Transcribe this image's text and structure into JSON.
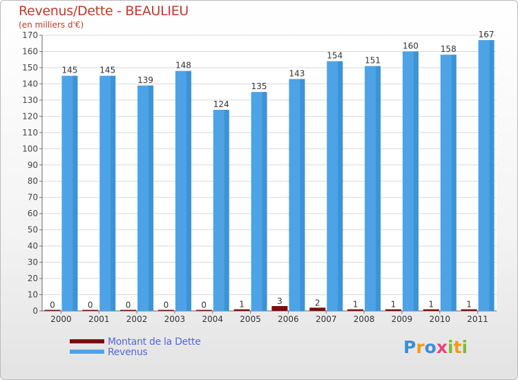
{
  "chart_data": {
    "type": "bar",
    "title": "Revenus/Dette - BEAULIEU",
    "subtitle": "(en milliers d'€)",
    "categories": [
      "2000",
      "2001",
      "2002",
      "2003",
      "2004",
      "2005",
      "2006",
      "2007",
      "2008",
      "2009",
      "2010",
      "2011"
    ],
    "series": [
      {
        "name": "Montant de la Dette",
        "color": "#7a0f0f",
        "values": [
          0,
          0,
          0,
          0,
          0,
          1,
          3,
          2,
          1,
          1,
          1,
          1
        ]
      },
      {
        "name": "Revenus",
        "color": "#4da3e6",
        "values": [
          145,
          145,
          139,
          148,
          124,
          135,
          143,
          154,
          151,
          160,
          158,
          167
        ]
      }
    ],
    "ylim": [
      0,
      170
    ],
    "yticks": [
      0,
      10,
      20,
      30,
      40,
      50,
      60,
      70,
      80,
      90,
      100,
      110,
      120,
      130,
      140,
      150,
      160,
      170
    ],
    "grid": true,
    "legend_position": "bottom-left"
  },
  "logo": {
    "text": "Proxiti",
    "letters": [
      "P",
      "r",
      "o",
      "x",
      "i",
      "t",
      "i"
    ]
  }
}
